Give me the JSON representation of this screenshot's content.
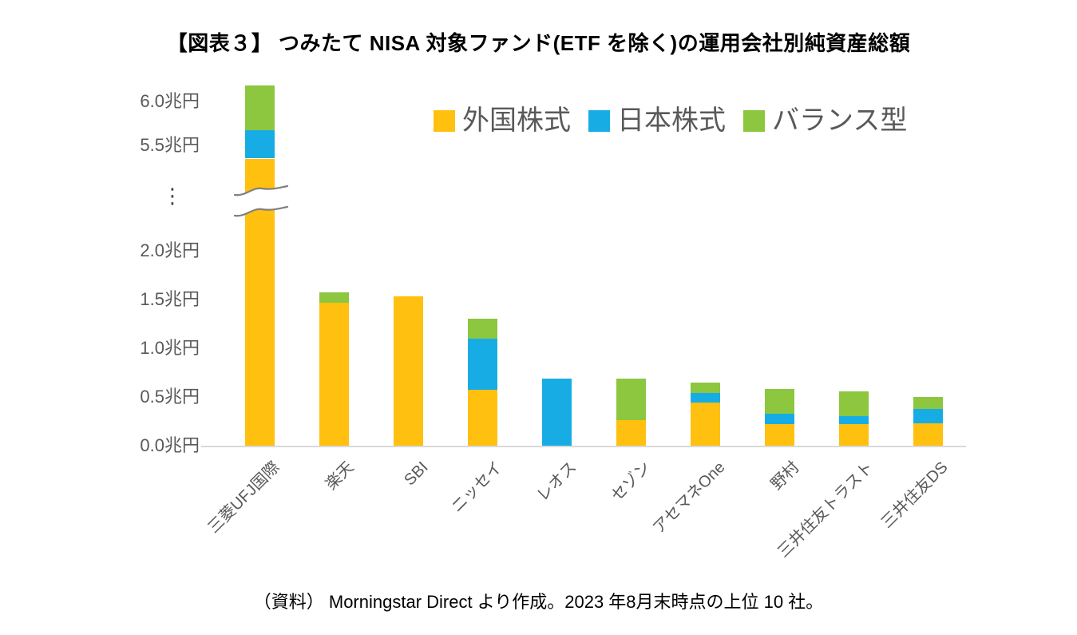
{
  "title": "【図表３】 つみたて NISA 対象ファンド(ETF を除く)の運用会社別純資産総額",
  "legend": {
    "items": [
      {
        "label": "外国株式",
        "color": "#FFC010"
      },
      {
        "label": "日本株式",
        "color": "#17ADE4"
      },
      {
        "label": "バランス型",
        "color": "#8DC63F"
      }
    ]
  },
  "y_axis": {
    "unit_suffix": "兆円",
    "break_symbol": "⋮",
    "ticks": [
      {
        "label": "6.0兆円",
        "value": 6.0
      },
      {
        "label": "5.5兆円",
        "value": 5.5
      },
      {
        "label": "2.0兆円",
        "value": 2.0
      },
      {
        "label": "1.5兆円",
        "value": 1.5
      },
      {
        "label": "1.0兆円",
        "value": 1.0
      },
      {
        "label": "0.5兆円",
        "value": 0.5
      },
      {
        "label": "0.0兆円",
        "value": 0.0
      }
    ]
  },
  "source": "（資料） Morningstar Direct より作成。2023 年8月末時点の上位 10 社。",
  "chart_data": {
    "type": "bar",
    "subtype": "stacked",
    "unit": "兆円",
    "grid": false,
    "legend_position": "top-inside",
    "ylim": [
      0,
      6.35
    ],
    "axis_break": {
      "between": [
        2.0,
        5.5
      ]
    },
    "categories": [
      "三菱UFJ国際",
      "楽天",
      "SBI",
      "ニッセイ",
      "レオス",
      "セゾン",
      "アセマネOne",
      "野村",
      "三井住友トラスト",
      "三井住友DS"
    ],
    "series": [
      {
        "name": "外国株式",
        "color": "#FFC010",
        "values": [
          5.35,
          1.47,
          1.53,
          0.57,
          0,
          0.26,
          0.44,
          0.22,
          0.22,
          0.23
        ]
      },
      {
        "name": "日本株式",
        "color": "#17ADE4",
        "values": [
          0.32,
          0,
          0,
          0.53,
          0.69,
          0,
          0.1,
          0.11,
          0.08,
          0.15
        ]
      },
      {
        "name": "バランス型",
        "color": "#8DC63F",
        "values": [
          0.51,
          0.1,
          0,
          0.2,
          0,
          0.43,
          0.11,
          0.25,
          0.26,
          0.12
        ]
      }
    ],
    "totals": [
      6.18,
      1.57,
      1.53,
      1.3,
      0.69,
      0.69,
      0.65,
      0.58,
      0.56,
      0.5
    ]
  }
}
